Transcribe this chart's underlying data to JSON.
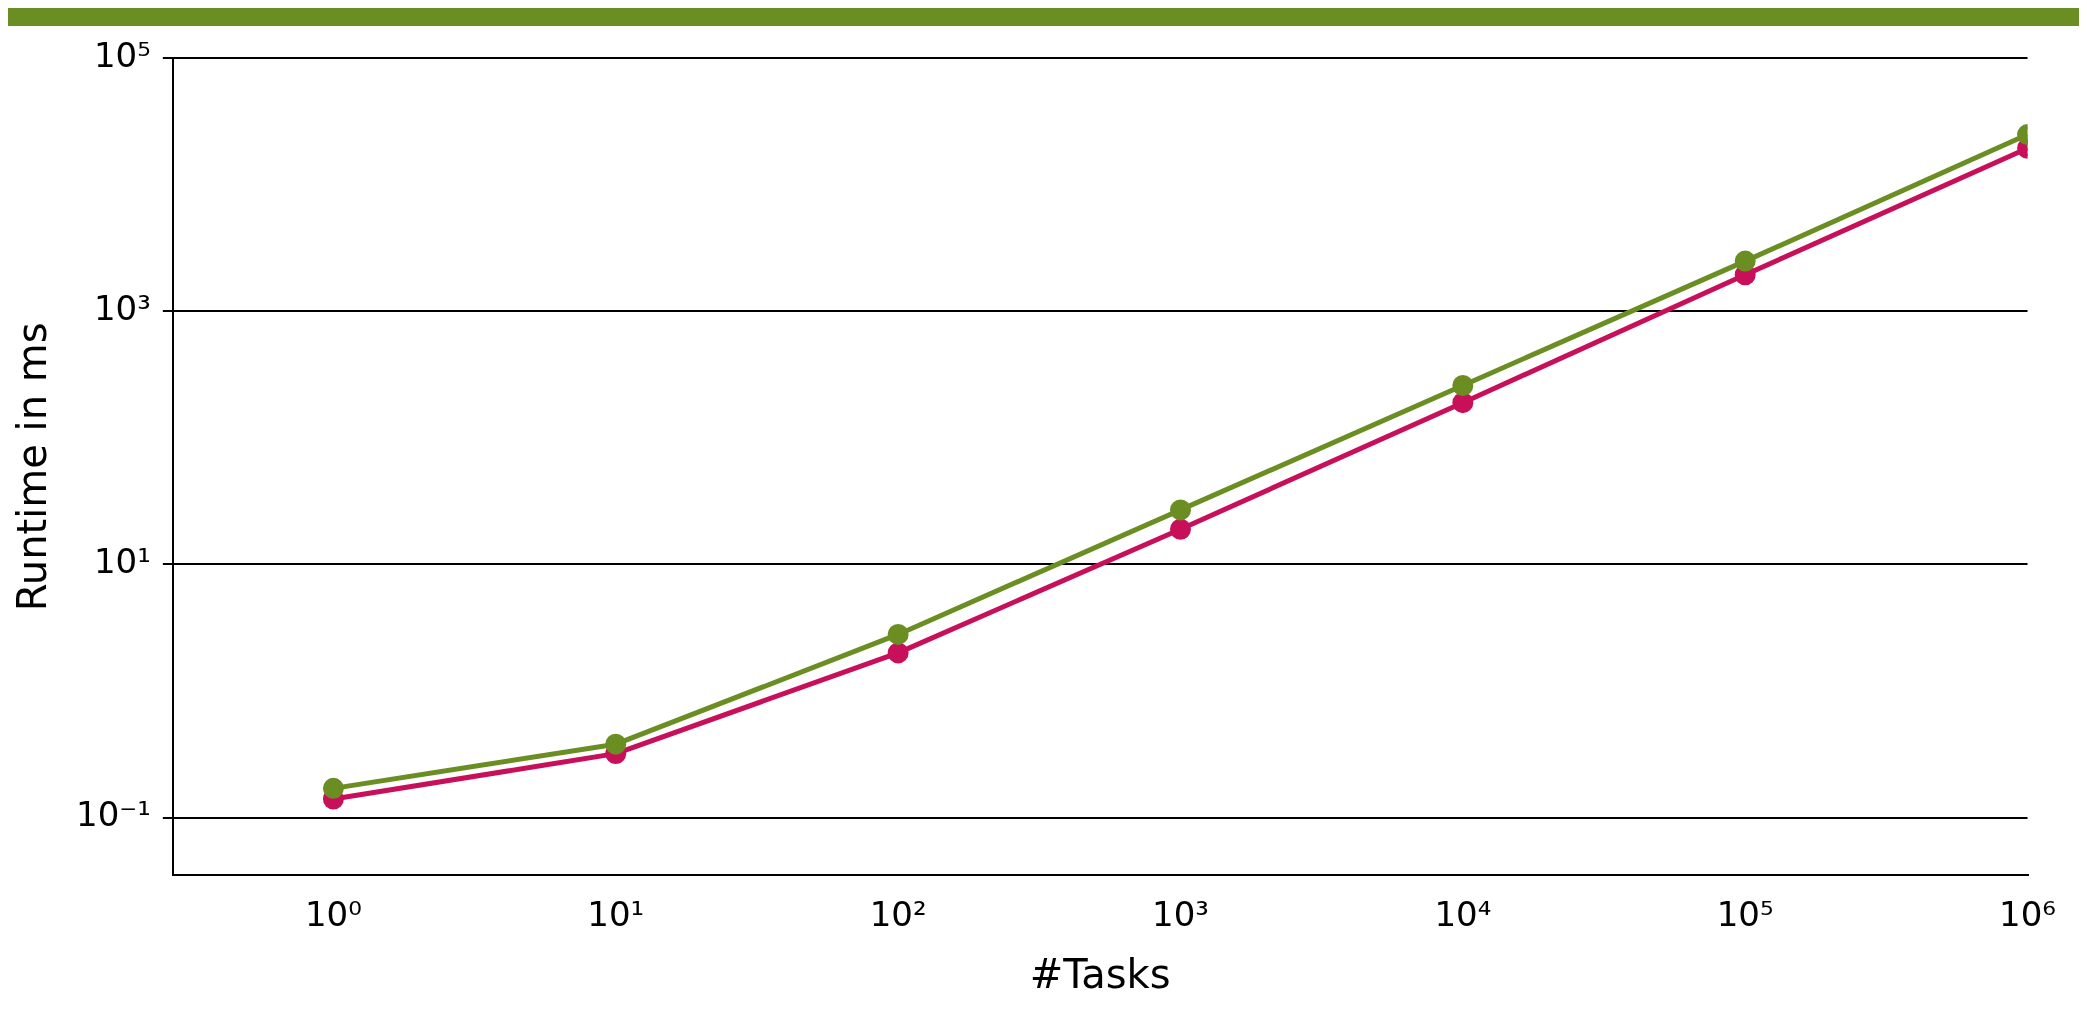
{
  "chart_data": {
    "type": "line",
    "xlabel": "#Tasks",
    "ylabel": "Runtime in ms",
    "log": "xy",
    "grid": "y",
    "marker": "circle",
    "line_style": "solid",
    "x": [
      1,
      10,
      100,
      1000,
      10000,
      100000,
      1000000
    ],
    "xlim": [
      0.27,
      1000000
    ],
    "ylim": [
      0.035,
      100000
    ],
    "xticks": [
      {
        "value": 1,
        "label": "10⁰"
      },
      {
        "value": 10,
        "label": "10¹"
      },
      {
        "value": 100,
        "label": "10²"
      },
      {
        "value": 1000,
        "label": "10³"
      },
      {
        "value": 10000,
        "label": "10⁴"
      },
      {
        "value": 100000,
        "label": "10⁵"
      },
      {
        "value": 1000000,
        "label": "10⁶"
      }
    ],
    "yticks": [
      {
        "value": 0.1,
        "label": "10⁻¹"
      },
      {
        "value": 10,
        "label": "10¹"
      },
      {
        "value": 1000,
        "label": "10³"
      },
      {
        "value": 100000,
        "label": "10⁵"
      }
    ],
    "series": [
      {
        "color": "#6b8e23",
        "values": [
          0.17,
          0.38,
          2.8,
          27,
          260,
          2500,
          25000
        ]
      },
      {
        "color": "#c8105a",
        "values": [
          0.14,
          0.32,
          2.0,
          19,
          190,
          1950,
          19500
        ]
      }
    ]
  }
}
